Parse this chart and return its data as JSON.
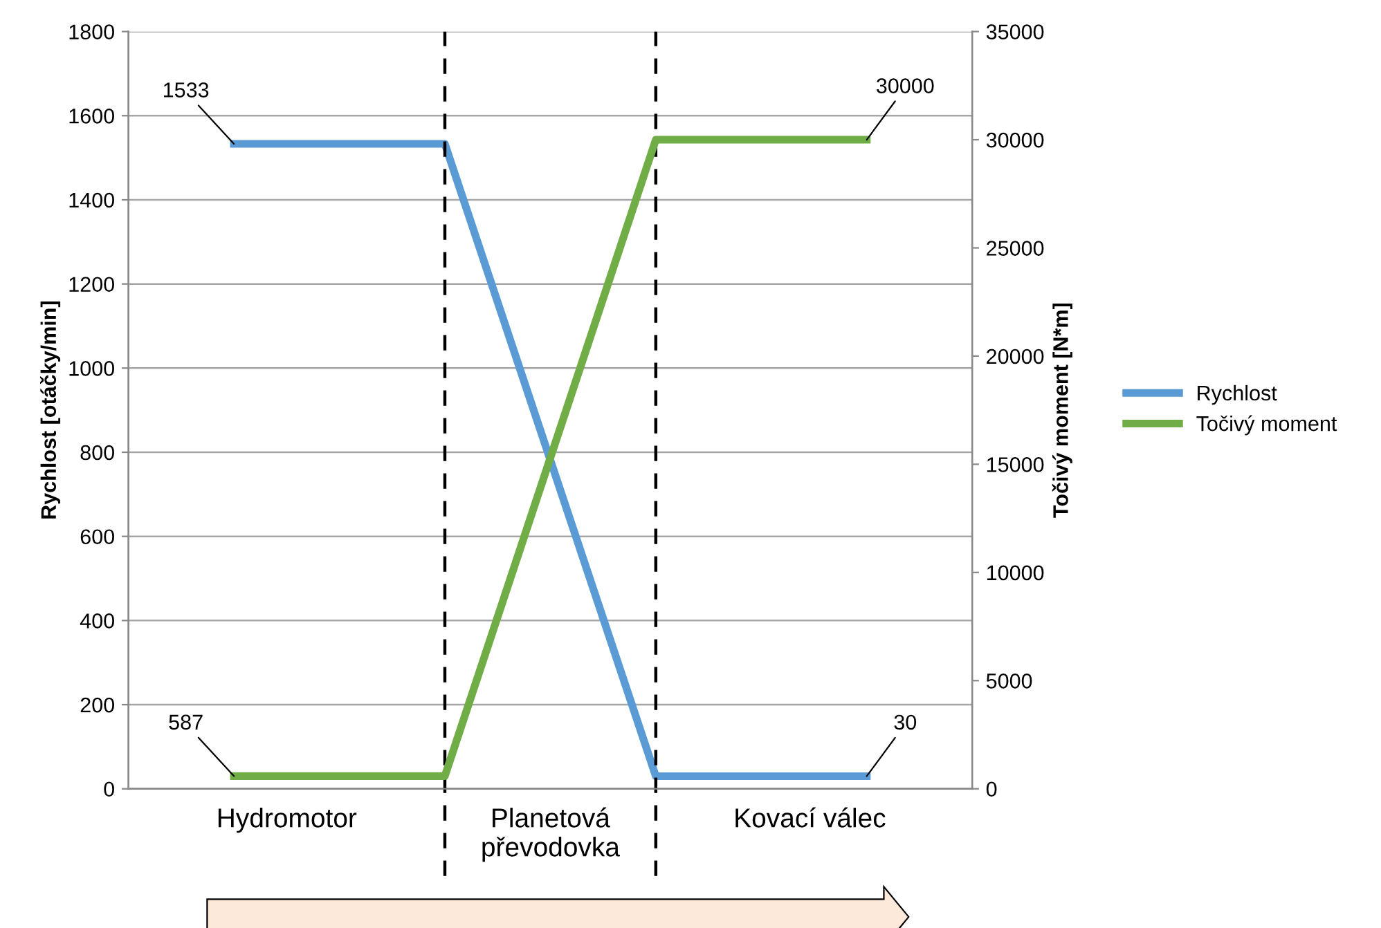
{
  "chart_data": {
    "type": "line",
    "ylabel": "Rychlost [otáčky/min]",
    "y2label": "Točivý moment [N*m]",
    "categories": [
      null,
      null,
      null,
      null
    ],
    "annotations": [
      "Hydromotor",
      "Planetová\npřevodovka",
      "Kovací válec"
    ],
    "ylim": [
      0,
      1800
    ],
    "yticks": [
      0,
      200,
      400,
      600,
      800,
      1000,
      1200,
      1400,
      1600,
      1800
    ],
    "y2lim": [
      0,
      35000
    ],
    "y2ticks": [
      0,
      5000,
      10000,
      15000,
      20000,
      25000,
      30000,
      35000
    ],
    "series": [
      {
        "name": "Rychlost",
        "color": "#5b9bd5",
        "values": [
          1533,
          1533,
          30,
          30
        ],
        "value_labels": [
          "1533",
          null,
          null,
          "30"
        ]
      },
      {
        "name": "Točivý moment",
        "color": "#70ad47",
        "axis": "y2",
        "values": [
          587,
          587,
          30000,
          30000
        ],
        "value_labels": [
          "587",
          null,
          null,
          "30000"
        ]
      }
    ],
    "grid": "y",
    "legend": "right",
    "marker": "none",
    "line_style": "solid"
  }
}
